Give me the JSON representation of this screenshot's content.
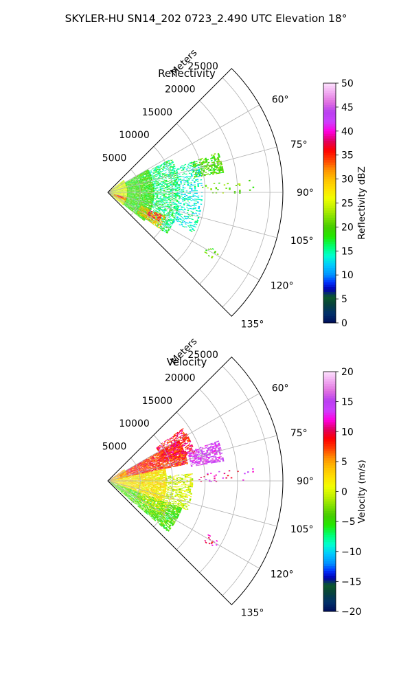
{
  "suptitle": "SKYLER-HU  SN14_202  0723_2.490 UTC Elevation 18°",
  "chart_data": [
    {
      "type": "heatmap",
      "projection": "polar-sector",
      "title": "Reflectivity",
      "radial_axis_label": "Meters",
      "range_ticks": [
        5000,
        10000,
        15000,
        20000,
        25000
      ],
      "range_tick_labels": [
        "5000",
        "10000",
        "15000",
        "20000",
        "25000"
      ],
      "rlim": [
        0,
        27000
      ],
      "azimuth_range_deg": [
        45,
        135
      ],
      "azimuth_ticks": [
        60,
        75,
        90,
        105,
        120,
        135
      ],
      "azimuth_tick_labels": [
        "60°",
        "75°",
        "90°",
        "105°",
        "120°",
        "135°"
      ],
      "grid": true,
      "colorbar": {
        "label": "Reflectivity dBZ",
        "vmin": 0,
        "vmax": 50,
        "ticks": [
          0,
          5,
          10,
          15,
          20,
          25,
          30,
          35,
          40,
          45,
          50
        ],
        "tick_labels": [
          "0",
          "5",
          "10",
          "15",
          "20",
          "25",
          "30",
          "35",
          "40",
          "45",
          "50"
        ],
        "stops": [
          [
            0,
            "#000c5a"
          ],
          [
            0.04,
            "#00306a"
          ],
          [
            0.08,
            "#07433a"
          ],
          [
            0.11,
            "#0b5a2a"
          ],
          [
            0.14,
            "#0000b0"
          ],
          [
            0.17,
            "#0030ff"
          ],
          [
            0.2,
            "#0090ff"
          ],
          [
            0.24,
            "#00c8ff"
          ],
          [
            0.28,
            "#00ffd0"
          ],
          [
            0.32,
            "#00ff70"
          ],
          [
            0.36,
            "#22e800"
          ],
          [
            0.4,
            "#44cc00"
          ],
          [
            0.44,
            "#80e000"
          ],
          [
            0.48,
            "#c0f000"
          ],
          [
            0.52,
            "#f0ff00"
          ],
          [
            0.56,
            "#ffe000"
          ],
          [
            0.6,
            "#ffc000"
          ],
          [
            0.64,
            "#ff9000"
          ],
          [
            0.68,
            "#ff4000"
          ],
          [
            0.72,
            "#ff0000"
          ],
          [
            0.76,
            "#e00060"
          ],
          [
            0.8,
            "#ff00e0"
          ],
          [
            0.84,
            "#cc40ff"
          ],
          [
            0.88,
            "#b840f0"
          ],
          [
            0.92,
            "#e070e0"
          ],
          [
            0.96,
            "#f0a8f0"
          ],
          [
            1,
            "#fde0fd"
          ]
        ]
      },
      "echo_regions": [
        {
          "az": [
            70,
            80
          ],
          "r": [
            13500,
            18000
          ],
          "value": 20,
          "density": 0.55
        },
        {
          "az": [
            52,
            130
          ],
          "r": [
            0,
            3000
          ],
          "value": 25,
          "density": 0.95
        },
        {
          "az": [
            60,
            128
          ],
          "r": [
            3000,
            7000
          ],
          "value": 19,
          "density": 0.9
        },
        {
          "az": [
            62,
            125
          ],
          "r": [
            7000,
            11000
          ],
          "value": 16,
          "density": 0.55
        },
        {
          "az": [
            70,
            115
          ],
          "r": [
            11000,
            14500
          ],
          "value": 14,
          "density": 0.3
        },
        {
          "az": [
            112,
            125
          ],
          "r": [
            5500,
            9500
          ],
          "value": 30,
          "density": 0.6
        },
        {
          "az": [
            113,
            120
          ],
          "r": [
            7000,
            9000
          ],
          "value": 36,
          "density": 0.55
        },
        {
          "az": [
            106,
            117
          ],
          "r": [
            1000,
            3000
          ],
          "value": 33,
          "density": 0.6
        },
        {
          "az": [
            105,
            112
          ],
          "r": [
            1500,
            2500
          ],
          "value": 37,
          "density": 0.6
        },
        {
          "az": [
            85,
            90
          ],
          "r": [
            14000,
            22500
          ],
          "value": 21,
          "density": 0.08
        },
        {
          "az": [
            118,
            122
          ],
          "r": [
            17500,
            19500
          ],
          "value": 20,
          "density": 0.2
        }
      ]
    },
    {
      "type": "heatmap",
      "projection": "polar-sector",
      "title": "Velocity",
      "radial_axis_label": "Meters",
      "range_ticks": [
        5000,
        10000,
        15000,
        20000,
        25000
      ],
      "range_tick_labels": [
        "5000",
        "10000",
        "15000",
        "20000",
        "25000"
      ],
      "rlim": [
        0,
        27000
      ],
      "azimuth_range_deg": [
        45,
        135
      ],
      "azimuth_ticks": [
        60,
        75,
        90,
        105,
        120,
        135
      ],
      "azimuth_tick_labels": [
        "60°",
        "75°",
        "90°",
        "105°",
        "120°",
        "135°"
      ],
      "grid": true,
      "colorbar": {
        "label": "Velocity (m/s)",
        "vmin": -20,
        "vmax": 20,
        "ticks": [
          -20,
          -15,
          -10,
          -5,
          0,
          5,
          10,
          15,
          20
        ],
        "tick_labels": [
          "−20",
          "−15",
          "−10",
          "−5",
          "0",
          "5",
          "10",
          "15",
          "20"
        ],
        "stops": [
          [
            0,
            "#000c5a"
          ],
          [
            0.04,
            "#00306a"
          ],
          [
            0.08,
            "#07433a"
          ],
          [
            0.11,
            "#0b5a2a"
          ],
          [
            0.14,
            "#0000b0"
          ],
          [
            0.17,
            "#0030ff"
          ],
          [
            0.2,
            "#0090ff"
          ],
          [
            0.24,
            "#00c8ff"
          ],
          [
            0.28,
            "#00ffd0"
          ],
          [
            0.32,
            "#00ff70"
          ],
          [
            0.36,
            "#22e800"
          ],
          [
            0.4,
            "#44cc00"
          ],
          [
            0.44,
            "#80e000"
          ],
          [
            0.48,
            "#c0f000"
          ],
          [
            0.52,
            "#f0ff00"
          ],
          [
            0.56,
            "#ffe000"
          ],
          [
            0.6,
            "#ffc000"
          ],
          [
            0.64,
            "#ff9000"
          ],
          [
            0.68,
            "#ff4000"
          ],
          [
            0.72,
            "#ff0000"
          ],
          [
            0.76,
            "#e00060"
          ],
          [
            0.8,
            "#ff00e0"
          ],
          [
            0.84,
            "#cc40ff"
          ],
          [
            0.88,
            "#b840f0"
          ],
          [
            0.92,
            "#e070e0"
          ],
          [
            0.96,
            "#f0a8f0"
          ],
          [
            1,
            "#fde0fd"
          ]
        ]
      },
      "echo_regions": [
        {
          "az": [
            60,
            78
          ],
          "r": [
            2000,
            12500
          ],
          "value": 8,
          "density": 0.9
        },
        {
          "az": [
            55,
            72
          ],
          "r": [
            9000,
            14000
          ],
          "value": 9,
          "density": 0.6
        },
        {
          "az": [
            70,
            80
          ],
          "r": [
            13000,
            18000
          ],
          "value": 15,
          "density": 0.65
        },
        {
          "az": [
            78,
            110
          ],
          "r": [
            0,
            9000
          ],
          "value": 2,
          "density": 0.9
        },
        {
          "az": [
            85,
            110
          ],
          "r": [
            9000,
            13000
          ],
          "value": 0,
          "density": 0.5
        },
        {
          "az": [
            110,
            130
          ],
          "r": [
            0,
            12000
          ],
          "value": -4,
          "density": 0.8
        },
        {
          "az": [
            110,
            122
          ],
          "r": [
            5000,
            10000
          ],
          "value": 1,
          "density": 0.4
        },
        {
          "az": [
            55,
            80
          ],
          "r": [
            0,
            3000
          ],
          "value": 4,
          "density": 0.9
        },
        {
          "az": [
            85,
            90
          ],
          "r": [
            14000,
            22500
          ],
          "value": 12,
          "density": 0.08
        },
        {
          "az": [
            118,
            122
          ],
          "r": [
            17500,
            19500
          ],
          "value": 10,
          "density": 0.2
        }
      ]
    }
  ]
}
